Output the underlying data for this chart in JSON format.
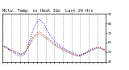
{
  "title": "Milw. Temp. vs Heat Idx  Last 24 Hrs",
  "background_color": "#ffffff",
  "grid_color": "#888888",
  "temp_color": "#dd0000",
  "heat_color": "#0000dd",
  "black_color": "#000000",
  "ylim_min": 40,
  "ylim_max": 90,
  "ytick_step": 10,
  "line_width": 0.7,
  "title_fontsize": 3.8,
  "temp": [
    57,
    56,
    55,
    53,
    52,
    51,
    50,
    49,
    48,
    48,
    49,
    52,
    56,
    61,
    65,
    68,
    70,
    71,
    70,
    68,
    66,
    65,
    63,
    61,
    59,
    57,
    56,
    54,
    53,
    52,
    51,
    50,
    49,
    48,
    47,
    46,
    46,
    47,
    48,
    49,
    51,
    52,
    53,
    54,
    55,
    55,
    54,
    53,
    52
  ],
  "heat": [
    56,
    55,
    54,
    52,
    51,
    50,
    48,
    47,
    46,
    46,
    47,
    52,
    58,
    65,
    72,
    77,
    81,
    84,
    83,
    80,
    76,
    72,
    68,
    65,
    62,
    60,
    58,
    56,
    55,
    53,
    52,
    51,
    50,
    49,
    48,
    47,
    47,
    48,
    49,
    50,
    52,
    53,
    54,
    54,
    55,
    55,
    54,
    53,
    51
  ],
  "actual": [
    57,
    56,
    55,
    53,
    52,
    51,
    50,
    49,
    48,
    48,
    49,
    51,
    55,
    59,
    63,
    66,
    68,
    69,
    68,
    66,
    65,
    63,
    61,
    60,
    58,
    56,
    55,
    54,
    52,
    51,
    50,
    49,
    48,
    47,
    46,
    46,
    46,
    47,
    48,
    49,
    50,
    51,
    52,
    53,
    54,
    54,
    53,
    52,
    51
  ],
  "num_vgrid": 12
}
